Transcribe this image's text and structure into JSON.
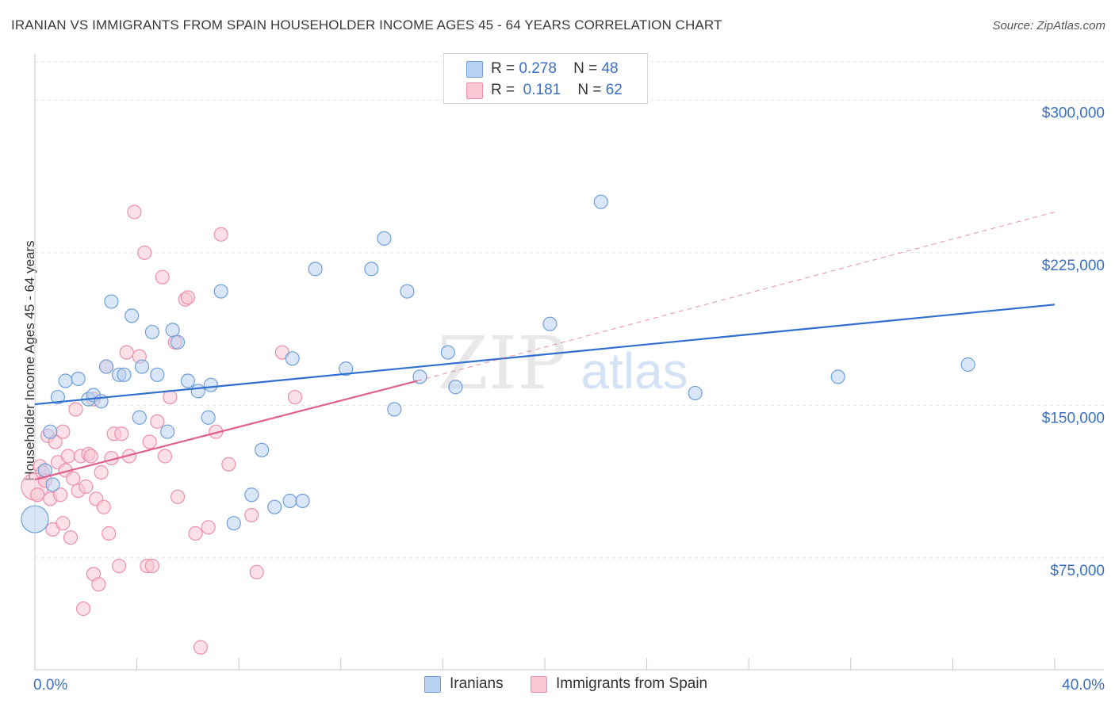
{
  "title": "IRANIAN VS IMMIGRANTS FROM SPAIN HOUSEHOLDER INCOME AGES 45 - 64 YEARS CORRELATION CHART",
  "source": "Source: ZipAtlas.com",
  "watermark": {
    "zip": "ZIP",
    "atlas": "atlas"
  },
  "colors": {
    "blue_fill": "#b9d1f0",
    "blue_stroke": "#6f9fd8",
    "blue_line": "#2f6fcf",
    "pink_fill": "#f9c6d4",
    "pink_stroke": "#ec8fac",
    "pink_line": "#e0608a",
    "axis_text": "#3b6fc4",
    "grid": "#e4e4e4"
  },
  "legend": {
    "rows": [
      {
        "r_label": "R =",
        "r_value": "0.278",
        "n_label": "N =",
        "n_value": "48"
      },
      {
        "r_label": "R =",
        "r_value": " 0.181",
        "n_label": "N =",
        "n_value": "62"
      }
    ]
  },
  "bottom_legend": {
    "series1": "Iranians",
    "series2": "Immigrants from Spain"
  },
  "chart_data": {
    "type": "scatter",
    "title": "IRANIAN VS IMMIGRANTS FROM SPAIN HOUSEHOLDER INCOME AGES 45 - 64 YEARS CORRELATION CHART",
    "xlabel": "",
    "ylabel": "Householder Income Ages 45 - 64 years",
    "xlim": [
      0,
      40
    ],
    "ylim": [
      20000,
      320000
    ],
    "x_tick_labels": [
      {
        "value": 0,
        "label": "0.0%"
      },
      {
        "value": 40,
        "label": "40.0%"
      }
    ],
    "y_ticks": [
      {
        "value": 75000,
        "label": "$75,000"
      },
      {
        "value": 150000,
        "label": "$150,000"
      },
      {
        "value": 225000,
        "label": "$225,000"
      },
      {
        "value": 300000,
        "label": "$300,000"
      }
    ],
    "series": [
      {
        "name": "Iranians",
        "R": 0.278,
        "N": 48,
        "trend": {
          "x0": 0,
          "y0": 150500,
          "x1": 40,
          "y1": 199500,
          "style": "solid"
        },
        "points": [
          [
            0.0,
            94000,
            "big"
          ],
          [
            0.4,
            118000
          ],
          [
            0.6,
            137000
          ],
          [
            0.7,
            111000
          ],
          [
            0.9,
            154000
          ],
          [
            1.2,
            162000
          ],
          [
            1.7,
            163000
          ],
          [
            2.1,
            153000
          ],
          [
            2.3,
            155000
          ],
          [
            2.6,
            152000
          ],
          [
            2.8,
            169000
          ],
          [
            3.0,
            201000
          ],
          [
            3.3,
            165000
          ],
          [
            3.5,
            165000
          ],
          [
            3.8,
            194000
          ],
          [
            4.1,
            144000
          ],
          [
            4.2,
            169000
          ],
          [
            4.6,
            186000
          ],
          [
            4.8,
            165000
          ],
          [
            5.2,
            137000
          ],
          [
            5.4,
            187000
          ],
          [
            5.6,
            181000
          ],
          [
            6.0,
            162000
          ],
          [
            6.4,
            157000
          ],
          [
            6.8,
            144000
          ],
          [
            6.9,
            160000
          ],
          [
            7.3,
            206000
          ],
          [
            7.8,
            92000
          ],
          [
            8.5,
            106000
          ],
          [
            8.9,
            128000
          ],
          [
            9.4,
            100000
          ],
          [
            10.0,
            103000
          ],
          [
            10.1,
            173000
          ],
          [
            10.5,
            103000
          ],
          [
            11.0,
            217000
          ],
          [
            12.2,
            168000
          ],
          [
            13.2,
            217000
          ],
          [
            13.7,
            232000
          ],
          [
            14.1,
            148000
          ],
          [
            14.6,
            206000
          ],
          [
            15.1,
            164000
          ],
          [
            16.2,
            176000
          ],
          [
            16.5,
            159000
          ],
          [
            20.2,
            190000
          ],
          [
            22.2,
            250000
          ],
          [
            25.9,
            156000
          ],
          [
            31.5,
            164000
          ],
          [
            36.6,
            170000
          ]
        ]
      },
      {
        "name": "Immigrants from Spain",
        "R": 0.181,
        "N": 62,
        "trend": {
          "x0": 0,
          "y0": 113500,
          "x1": 15.0,
          "y1": 162000,
          "style": "solid"
        },
        "trend_ext": {
          "x0": 15.0,
          "y0": 162000,
          "x1": 40,
          "y1": 245000,
          "style": "dashed"
        },
        "points": [
          [
            0.0,
            110000,
            "big"
          ],
          [
            0.1,
            106000
          ],
          [
            0.2,
            120000
          ],
          [
            0.3,
            117000
          ],
          [
            0.4,
            113000
          ],
          [
            0.5,
            135000
          ],
          [
            0.6,
            104000
          ],
          [
            0.7,
            89000
          ],
          [
            0.8,
            132000
          ],
          [
            0.9,
            122000
          ],
          [
            1.0,
            106000
          ],
          [
            1.1,
            92000
          ],
          [
            1.1,
            137000
          ],
          [
            1.2,
            118000
          ],
          [
            1.3,
            125000
          ],
          [
            1.4,
            85000
          ],
          [
            1.5,
            114000
          ],
          [
            1.6,
            148000
          ],
          [
            1.7,
            108000
          ],
          [
            1.8,
            125000
          ],
          [
            1.9,
            50000
          ],
          [
            2.0,
            110000
          ],
          [
            2.1,
            126000
          ],
          [
            2.2,
            125000
          ],
          [
            2.3,
            153000
          ],
          [
            2.3,
            67000
          ],
          [
            2.4,
            104000
          ],
          [
            2.5,
            62000
          ],
          [
            2.6,
            117000
          ],
          [
            2.7,
            100000
          ],
          [
            2.8,
            169000
          ],
          [
            2.9,
            87000
          ],
          [
            3.0,
            124000
          ],
          [
            3.1,
            136000
          ],
          [
            3.3,
            71000
          ],
          [
            3.4,
            136000
          ],
          [
            3.6,
            176000
          ],
          [
            3.7,
            125000
          ],
          [
            3.9,
            245000
          ],
          [
            4.1,
            174000
          ],
          [
            4.3,
            225000
          ],
          [
            4.4,
            71000
          ],
          [
            4.5,
            132000
          ],
          [
            4.6,
            71000
          ],
          [
            4.8,
            142000
          ],
          [
            5.0,
            213000
          ],
          [
            5.1,
            125000
          ],
          [
            5.3,
            154000
          ],
          [
            5.5,
            181000
          ],
          [
            5.6,
            105000
          ],
          [
            5.9,
            202000
          ],
          [
            6.0,
            203000
          ],
          [
            6.3,
            87000
          ],
          [
            6.5,
            31000
          ],
          [
            6.8,
            90000
          ],
          [
            7.1,
            137000
          ],
          [
            7.3,
            234000
          ],
          [
            7.6,
            121000
          ],
          [
            8.5,
            96000
          ],
          [
            8.7,
            68000
          ],
          [
            9.7,
            176000
          ],
          [
            10.2,
            154000
          ]
        ]
      }
    ]
  }
}
